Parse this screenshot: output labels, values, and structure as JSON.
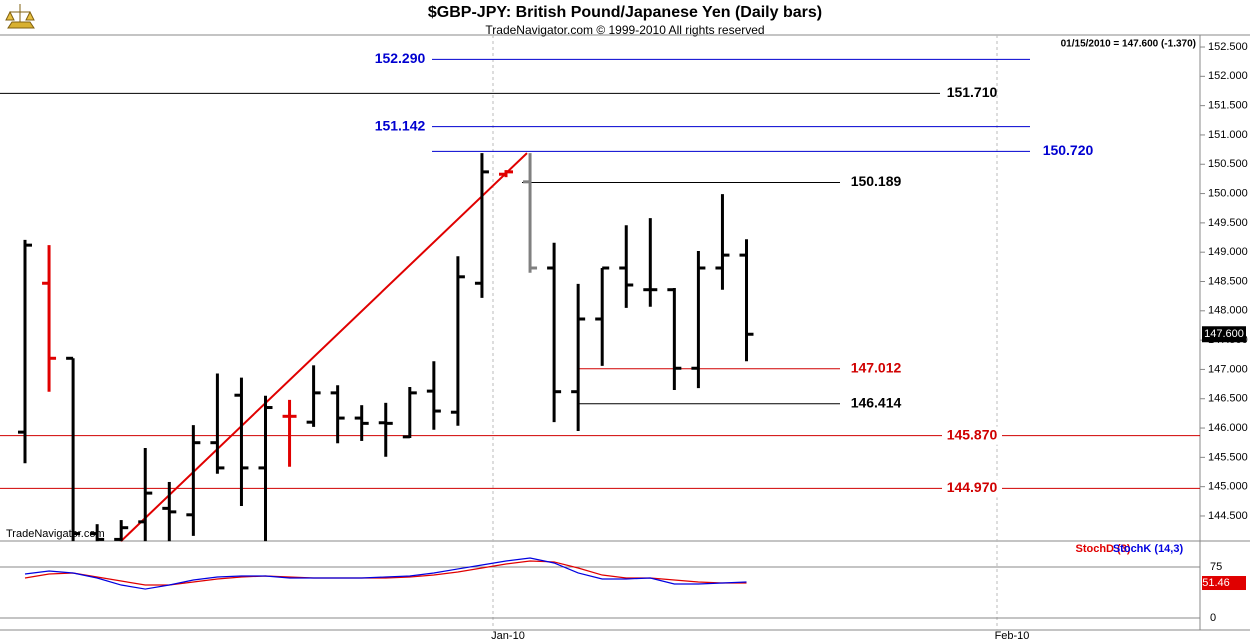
{
  "chart_data": [
    {
      "type": "ohlc",
      "title": "$GBP-JPY:  British Pound/Japanese Yen  (Daily bars)",
      "subtitle": "TradeNavigator.com © 1999-2010 All rights reserved",
      "header_quote": "01/15/2010 = 147.600 (-1.370)",
      "watermark": "TradeNavigator.com",
      "open": [
        145.93,
        148.47,
        147.19,
        144.2,
        144.1,
        144.4,
        144.63,
        144.52,
        145.75,
        146.56,
        145.32,
        146.2,
        146.1,
        146.6,
        146.17,
        146.09,
        145.85,
        146.63,
        146.27,
        148.47,
        150.33,
        150.2,
        148.73,
        146.62,
        147.86,
        148.73,
        148.36,
        148.36,
        147.02,
        148.73,
        148.95
      ],
      "high": [
        149.21,
        149.12,
        147.19,
        144.36,
        144.43,
        145.66,
        145.08,
        146.05,
        146.93,
        146.86,
        146.55,
        146.48,
        147.07,
        146.73,
        146.39,
        146.43,
        146.7,
        147.14,
        148.93,
        150.69,
        150.4,
        150.69,
        149.16,
        148.46,
        148.73,
        149.46,
        149.58,
        148.39,
        149.02,
        149.99,
        149.22
      ],
      "low": [
        145.4,
        146.62,
        144.07,
        144.07,
        144.07,
        144.07,
        144.07,
        144.16,
        145.22,
        144.67,
        144.07,
        145.34,
        146.02,
        145.74,
        145.78,
        145.51,
        145.83,
        145.97,
        146.04,
        148.22,
        150.28,
        148.65,
        146.1,
        145.95,
        147.06,
        148.05,
        148.07,
        146.65,
        146.68,
        148.36,
        147.14
      ],
      "close": [
        149.12,
        147.19,
        144.2,
        144.1,
        144.3,
        144.89,
        144.57,
        145.75,
        145.32,
        145.32,
        146.35,
        146.2,
        146.6,
        146.17,
        146.08,
        146.08,
        146.6,
        146.29,
        148.58,
        150.37,
        150.37,
        148.73,
        146.62,
        147.86,
        148.73,
        148.44,
        148.36,
        147.02,
        148.73,
        148.95,
        147.6
      ],
      "bar_colors": [
        "#000",
        "#e00000",
        "#000",
        "#000",
        "#000",
        "#000",
        "#000",
        "#000",
        "#000",
        "#000",
        "#000",
        "#e00000",
        "#000",
        "#000",
        "#000",
        "#000",
        "#000",
        "#000",
        "#000",
        "#000",
        "#e00000",
        "#808080",
        "#000",
        "#000",
        "#000",
        "#000",
        "#000",
        "#000",
        "#000",
        "#000",
        "#000"
      ],
      "ylim": [
        144.073,
        152.705
      ],
      "yticks": [
        {
          "value": 144.5,
          "label": "144.500"
        },
        {
          "value": 145,
          "label": "145.000"
        },
        {
          "value": 145.5,
          "label": "145.500"
        },
        {
          "value": 146,
          "label": "146.000"
        },
        {
          "value": 146.5,
          "label": "146.500"
        },
        {
          "value": 147,
          "label": "147.000"
        },
        {
          "value": 147.5,
          "label": "147.500"
        },
        {
          "value": 148,
          "label": "148.000"
        },
        {
          "value": 148.5,
          "label": "148.500"
        },
        {
          "value": 149,
          "label": "149.000"
        },
        {
          "value": 149.5,
          "label": "149.500"
        },
        {
          "value": 150,
          "label": "150.000"
        },
        {
          "value": 150.5,
          "label": "150.500"
        },
        {
          "value": 151,
          "label": "151.000"
        },
        {
          "value": 151.5,
          "label": "151.500"
        },
        {
          "value": 152,
          "label": "152.000"
        },
        {
          "value": 152.5,
          "label": "152.500"
        }
      ],
      "last_price": {
        "value": 147.6,
        "label": "147.600"
      },
      "levels": [
        {
          "value": 152.29,
          "label": "152.290",
          "color": "#0000d0"
        },
        {
          "value": 151.71,
          "label": "151.710",
          "color": "#000000"
        },
        {
          "value": 151.142,
          "label": "151.142",
          "color": "#0000d0"
        },
        {
          "value": 150.72,
          "label": "150.720",
          "color": "#0000d0"
        },
        {
          "value": 150.189,
          "label": "150.189",
          "color": "#000000"
        },
        {
          "value": 147.012,
          "label": "147.012",
          "color": "#d00000"
        },
        {
          "value": 146.414,
          "label": "146.414",
          "color": "#000000"
        },
        {
          "value": 145.87,
          "label": "145.870",
          "color": "#d00000"
        },
        {
          "value": 144.97,
          "label": "144.970",
          "color": "#d00000"
        }
      ],
      "trendline": {
        "values": [
          144.07,
          150.69
        ],
        "color": "#e00000"
      }
    },
    {
      "type": "line",
      "series": [
        {
          "name": "StochD (3)",
          "color": "#e00000",
          "values": [
            58.8,
            64.7,
            66.2,
            60.3,
            54.4,
            48.5,
            48.5,
            52.9,
            57.4,
            60.3,
            61.8,
            60.3,
            58.8,
            58.8,
            58.8,
            58.8,
            60.3,
            63.2,
            67.6,
            73.5,
            79.4,
            83.8,
            82.4,
            73.5,
            63.2,
            58.8,
            58.8,
            55.9,
            52.9,
            51.5,
            51.46
          ]
        },
        {
          "name": "StochK (14,3)",
          "color": "#0000e0",
          "values": [
            64.7,
            69.1,
            66.2,
            58.8,
            48.5,
            42.6,
            48.5,
            55.9,
            60.3,
            61.8,
            61.8,
            58.8,
            58.8,
            58.8,
            58.8,
            60.3,
            61.8,
            66.2,
            72.1,
            77.9,
            83.8,
            88.2,
            80.9,
            66.2,
            57.4,
            57.4,
            58.8,
            50.0,
            50.0,
            51.5,
            52.9
          ]
        }
      ],
      "last_value": 51.46,
      "ylim": [
        -17.6,
        113.2
      ],
      "yticks": [
        0,
        75
      ],
      "x_axis_labels": [
        "Jan-10",
        "Feb-10"
      ]
    }
  ]
}
